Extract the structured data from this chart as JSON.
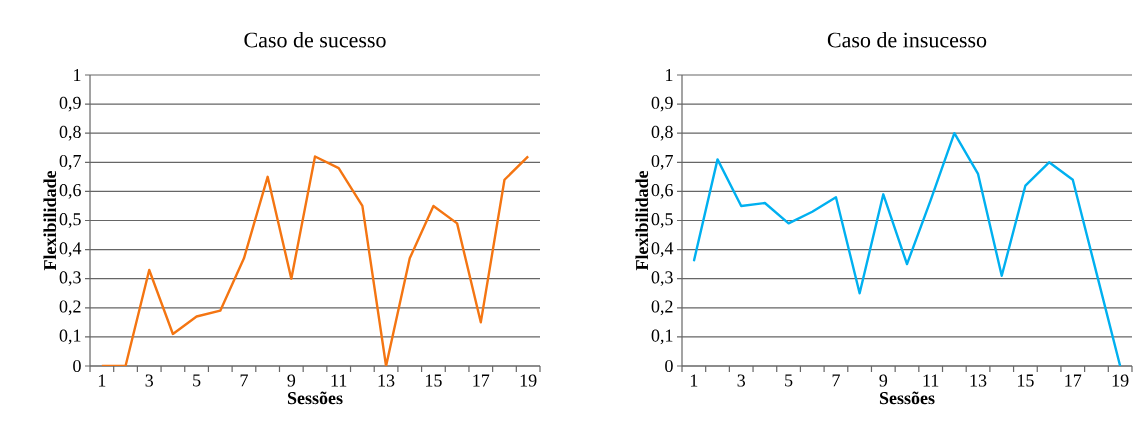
{
  "chart_data": [
    {
      "type": "line",
      "title": "Caso de sucesso",
      "xlabel": "Sessões",
      "ylabel": "Flexibilidade",
      "grid": "y",
      "categories": [
        "1",
        null,
        "3",
        null,
        "5",
        null,
        "7",
        null,
        "9",
        null,
        "11",
        null,
        "13",
        null,
        "15",
        null,
        "17",
        null,
        "19"
      ],
      "series": [
        {
          "color": "#f47512",
          "values": [
            0,
            0,
            0.33,
            0.11,
            0.17,
            0.19,
            0.37,
            0.65,
            0.3,
            0.72,
            0.68,
            0.55,
            0,
            0.37,
            0.55,
            0.49,
            0.15,
            0.64,
            0.72
          ]
        }
      ],
      "ylim": [
        0,
        1
      ],
      "yticks": [
        0,
        {
          "value": 0.1,
          "label": "0,1"
        },
        {
          "value": 0.2,
          "label": "0,2"
        },
        {
          "value": 0.3,
          "label": "0,3"
        },
        {
          "value": 0.4,
          "label": "0,4"
        },
        {
          "value": 0.5,
          "label": "0,5"
        },
        {
          "value": 0.6,
          "label": "0,6"
        },
        {
          "value": 0.7,
          "label": "0,7"
        },
        {
          "value": 0.8,
          "label": "0,8"
        },
        {
          "value": 0.9,
          "label": "0,9"
        },
        1
      ]
    },
    {
      "type": "line",
      "title": "Caso de insucesso",
      "xlabel": "Sessões",
      "ylabel": "Flexibilidade",
      "grid": "y",
      "categories": [
        "1",
        null,
        "3",
        null,
        "5",
        null,
        "7",
        null,
        "9",
        null,
        "11",
        null,
        "13",
        null,
        "15",
        null,
        "17",
        null,
        "19"
      ],
      "series": [
        {
          "color": "#00b0f0",
          "values": [
            0.36,
            0.71,
            0.55,
            0.56,
            0.49,
            0.53,
            0.58,
            0.25,
            0.59,
            0.35,
            0.57,
            0.8,
            0.66,
            0.31,
            0.62,
            0.7,
            0.64,
            0.32,
            0
          ]
        }
      ],
      "ylim": [
        0,
        1
      ],
      "yticks": [
        0,
        {
          "value": 0.1,
          "label": "0,1"
        },
        {
          "value": 0.2,
          "label": "0,2"
        },
        {
          "value": 0.3,
          "label": "0,3"
        },
        {
          "value": 0.4,
          "label": "0,4"
        },
        {
          "value": 0.5,
          "label": "0,5"
        },
        {
          "value": 0.6,
          "label": "0,6"
        },
        {
          "value": 0.7,
          "label": "0,7"
        },
        {
          "value": 0.8,
          "label": "0,8"
        },
        {
          "value": 0.9,
          "label": "0,9"
        },
        1
      ]
    }
  ]
}
